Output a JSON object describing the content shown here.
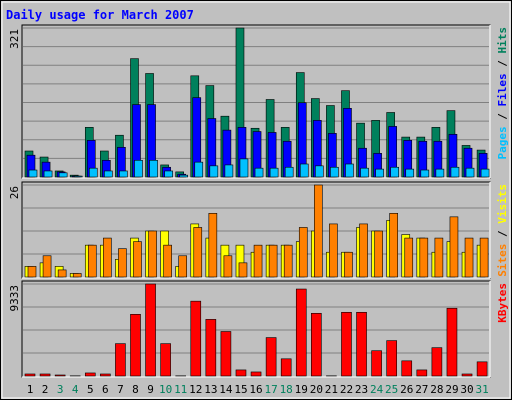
{
  "chart_data": {
    "type": "bar",
    "title": "Daily usage for March 2007",
    "categories": [
      "1",
      "2",
      "3",
      "4",
      "5",
      "6",
      "7",
      "8",
      "9",
      "10",
      "11",
      "12",
      "13",
      "14",
      "15",
      "16",
      "17",
      "18",
      "19",
      "20",
      "21",
      "22",
      "23",
      "24",
      "25",
      "26",
      "27",
      "28",
      "29",
      "30",
      "31"
    ],
    "category_colors": [
      "#000000",
      "#000000",
      "#00805c",
      "#00805c",
      "#000000",
      "#000000",
      "#000000",
      "#000000",
      "#000000",
      "#00805c",
      "#00805c",
      "#000000",
      "#000000",
      "#000000",
      "#000000",
      "#000000",
      "#00805c",
      "#00805c",
      "#000000",
      "#000000",
      "#000000",
      "#000000",
      "#000000",
      "#00805c",
      "#00805c",
      "#000000",
      "#000000",
      "#000000",
      "#000000",
      "#000000",
      "#00805c"
    ],
    "legend_separator": " / ",
    "panels": [
      {
        "ylim": [
          0,
          321
        ],
        "yticks": [
          321
        ],
        "series": [
          {
            "name": "Hits",
            "color": "#00805c",
            "values": [
              56,
              43,
              13,
              4,
              107,
              56,
              90,
              255,
              223,
              26,
              11,
              218,
              197,
              131,
              321,
              105,
              167,
              107,
              225,
              169,
              154,
              186,
              116,
              122,
              139,
              86,
              86,
              107,
              143,
              68,
              58
            ]
          },
          {
            "name": "Files",
            "color": "#0000ff",
            "values": [
              47,
              32,
              11,
              2,
              79,
              36,
              64,
              156,
              156,
              21,
              6,
              171,
              126,
              101,
              107,
              98,
              96,
              77,
              160,
              122,
              94,
              148,
              62,
              51,
              109,
              79,
              77,
              77,
              92,
              62,
              51
            ]
          },
          {
            "name": "Pages",
            "color": "#00c0ff",
            "values": [
              15,
              13,
              9,
              2,
              19,
              13,
              13,
              36,
              36,
              13,
              4,
              32,
              24,
              26,
              39,
              19,
              19,
              21,
              28,
              24,
              21,
              28,
              19,
              17,
              21,
              17,
              15,
              17,
              21,
              19,
              17
            ]
          }
        ]
      },
      {
        "ylim": [
          0,
          26
        ],
        "yticks": [
          26
        ],
        "series": [
          {
            "name": "Visits",
            "color": "#ffff00",
            "values": [
              3,
              4,
              3,
              1,
              9,
              9,
              5,
              11,
              13,
              13,
              3,
              15,
              11,
              9,
              9,
              7,
              9,
              9,
              10,
              13,
              7,
              7,
              14,
              13,
              16,
              12,
              11,
              7,
              10,
              7,
              9
            ]
          },
          {
            "name": "Sites",
            "color": "#ff8000",
            "values": [
              3,
              6,
              2,
              1,
              9,
              11,
              8,
              10,
              13,
              9,
              6,
              14,
              18,
              6,
              4,
              9,
              9,
              9,
              14,
              26,
              15,
              7,
              15,
              13,
              18,
              11,
              11,
              11,
              17,
              11,
              11
            ]
          }
        ]
      },
      {
        "ylim": [
          0,
          9333
        ],
        "yticks": [
          9333
        ],
        "series": [
          {
            "name": "KBytes",
            "color": "#ff0000",
            "values": [
              205,
              205,
              103,
              20,
              308,
              205,
              3283,
              6258,
              9333,
              3283,
              20,
              7592,
              5745,
              4514,
              616,
              410,
              3898,
              1744,
              8822,
              6361,
              20,
              6463,
              6463,
              2565,
              3591,
              1539,
              616,
              2873,
              6874,
              205,
              1436
            ]
          }
        ]
      }
    ]
  }
}
